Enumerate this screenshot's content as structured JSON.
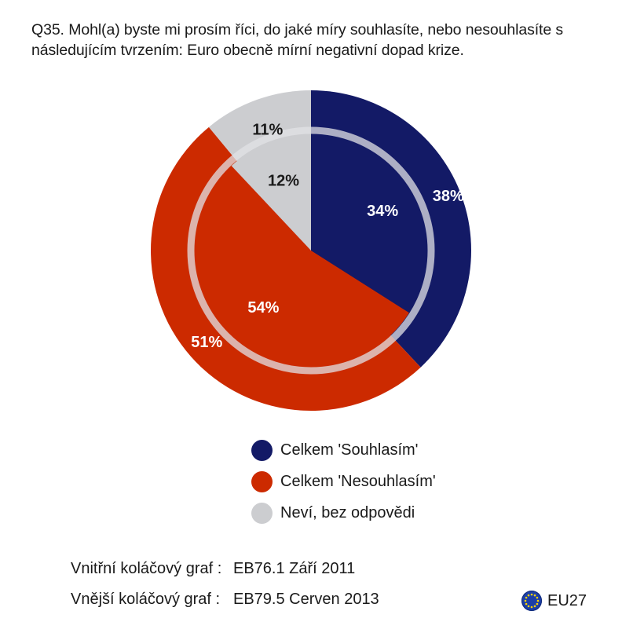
{
  "title": "Q35. Mohl(a) byste mi prosím říci, do jaké míry souhlasíte, nebo nesouhlasíte s následujícím tvrzením: Euro obecně mírní negativní dopad krize.",
  "chart_data": {
    "type": "pie",
    "title": "Q35. Mohl(a) byste mi prosím říci, do jaké míry souhlasíte, nebo nesouhlasíte s následujícím tvrzením: Euro obecně mírní negativní dopad krize.",
    "categories": [
      "Celkem 'Souhlasím'",
      "Celkem 'Nesouhlasím'",
      "Neví, bez odpovědi"
    ],
    "series": [
      {
        "name": "EB79.5 Cerven 2013",
        "values": [
          38,
          51,
          11
        ],
        "labels": [
          "38%",
          "51%",
          "11%"
        ]
      },
      {
        "name": "EB76.1 Září 2011",
        "values": [
          34,
          54,
          12
        ],
        "labels": [
          "34%",
          "54%",
          "12%"
        ]
      }
    ],
    "colors": [
      "#131a66",
      "#cc2a00",
      "#cccdd0"
    ],
    "legend_position": "bottom"
  },
  "legend": [
    {
      "label": "Celkem 'Souhlasím'",
      "color": "#131a66"
    },
    {
      "label": "Celkem 'Nesouhlasím'",
      "color": "#cc2a00"
    },
    {
      "label": "Neví, bez odpovědi",
      "color": "#cccdd0"
    }
  ],
  "footer": {
    "inner_label": "Vnitřní koláčový graf :",
    "inner_value": "EB76.1 Září 2011",
    "outer_label": "Vnější koláčový graf :",
    "outer_value": "EB79.5 Cerven 2013"
  },
  "region": {
    "label": "EU27",
    "icon": "eu-flag-icon"
  }
}
